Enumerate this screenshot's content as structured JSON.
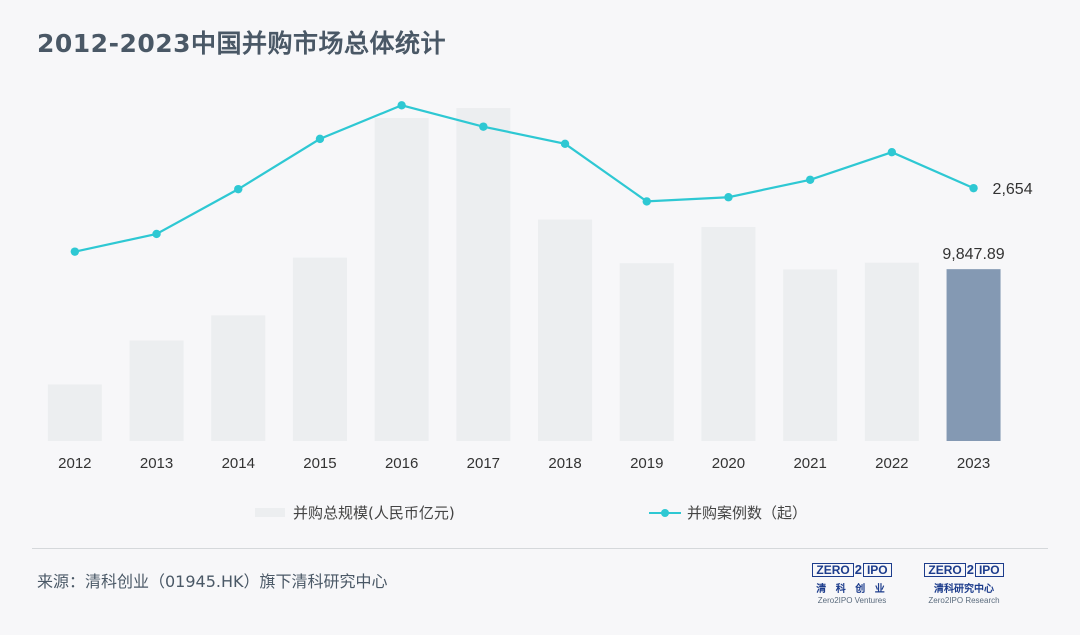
{
  "title": "2012-2023中国并购市场总体统计",
  "chart_data": {
    "type": "bar",
    "categories": [
      "2012",
      "2013",
      "2014",
      "2015",
      "2016",
      "2017",
      "2018",
      "2019",
      "2020",
      "2021",
      "2022",
      "2023"
    ],
    "series": [
      {
        "name": "并购总规模(人民币亿元)",
        "type": "bar",
        "values": [
          3240,
          5760,
          7200,
          10510,
          18510,
          19080,
          12690,
          10190,
          12260,
          9830,
          10220,
          9847.89
        ],
        "colors": {
          "default": "#eceef0",
          "highlight": "#8499b3"
        },
        "highlight_index": 11
      },
      {
        "name": "并购案例数（起）",
        "type": "line",
        "values": [
          1435,
          1775,
          2635,
          3600,
          4245,
          3835,
          3505,
          2400,
          2480,
          2815,
          3344,
          2654
        ],
        "color": "#2ec8d3"
      }
    ],
    "data_labels": [
      {
        "series": 0,
        "index": 11,
        "text": "9,847.89"
      },
      {
        "series": 1,
        "index": 11,
        "text": "2,654"
      }
    ],
    "bar_axis_max": 20000,
    "line_axis": [
      -2200,
      4500
    ],
    "legend_position": "bottom",
    "grid": false
  },
  "legend": {
    "bar_label": "并购总规模(人民币亿元)",
    "line_label": "并购案例数（起）"
  },
  "source": "来源：清科创业（01945.HK）旗下清科研究中心",
  "logos": [
    {
      "mark_left": "ZERO",
      "mark_mid": "2",
      "mark_right": "IPO",
      "cn": "清 科 创 业",
      "en": "Zero2IPO Ventures"
    },
    {
      "mark_left": "ZERO",
      "mark_mid": "2",
      "mark_right": "IPO",
      "cn": "清科研究中心",
      "en": "Zero2IPO Research"
    }
  ]
}
